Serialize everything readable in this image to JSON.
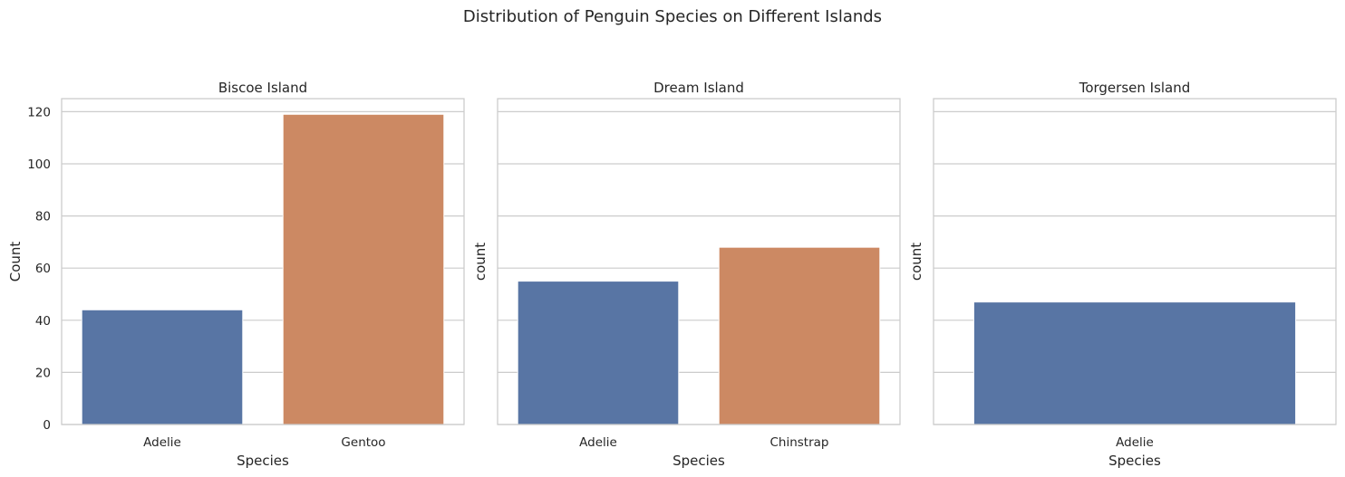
{
  "figure": {
    "title": "Distribution of Penguin Species on Different Islands"
  },
  "colors": {
    "Adelie": "#5875a4",
    "Gentoo": "#cc8963",
    "Chinstrap": "#cc8963",
    "grid": "#cccccc",
    "text": "#262626"
  },
  "chart_data": [
    {
      "type": "bar",
      "title": "Biscoe Island",
      "xlabel": "Species",
      "ylabel": "Count",
      "categories": [
        "Adelie",
        "Gentoo"
      ],
      "values": [
        44,
        119
      ],
      "ylim": [
        0,
        125
      ],
      "yticks": [
        0,
        20,
        40,
        60,
        80,
        100,
        120
      ],
      "show_ytick_labels": true,
      "grid": "y"
    },
    {
      "type": "bar",
      "title": "Dream Island",
      "xlabel": "Species",
      "ylabel": "count",
      "categories": [
        "Adelie",
        "Chinstrap"
      ],
      "values": [
        55,
        68
      ],
      "ylim": [
        0,
        125
      ],
      "yticks": [
        0,
        20,
        40,
        60,
        80,
        100,
        120
      ],
      "show_ytick_labels": false,
      "grid": "y"
    },
    {
      "type": "bar",
      "title": "Torgersen Island",
      "xlabel": "Species",
      "ylabel": "count",
      "categories": [
        "Adelie"
      ],
      "values": [
        47
      ],
      "ylim": [
        0,
        125
      ],
      "yticks": [
        0,
        20,
        40,
        60,
        80,
        100,
        120
      ],
      "show_ytick_labels": false,
      "grid": "y"
    }
  ]
}
